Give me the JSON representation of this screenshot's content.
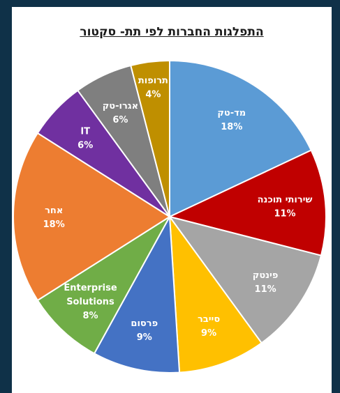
{
  "chart_data": {
    "type": "pie",
    "title": "התפלגות החברות לפי תת- סקטור",
    "start_angle_deg": 0,
    "direction": "clockwise",
    "slices": [
      {
        "label": "מד-טק",
        "value": 18,
        "pct_label": "18%",
        "color": "#5b9bd5"
      },
      {
        "label": "שירותי תוכנה",
        "value": 11,
        "pct_label": "11%",
        "color": "#c00000"
      },
      {
        "label": "פינטק",
        "value": 11,
        "pct_label": "11%",
        "color": "#a5a5a5"
      },
      {
        "label": "סייבר",
        "value": 9,
        "pct_label": "9%",
        "color": "#ffc000"
      },
      {
        "label": "פרסום",
        "value": 9,
        "pct_label": "9%",
        "color": "#4472c4"
      },
      {
        "label": "Enterprise Solutions",
        "value": 8,
        "pct_label": "8%",
        "color": "#70ad47",
        "label_lines": [
          "Enterprise",
          "Solutions"
        ]
      },
      {
        "label": "אחר",
        "value": 18,
        "pct_label": "18%",
        "color": "#ed7d31"
      },
      {
        "label": "IT",
        "value": 6,
        "pct_label": "6%",
        "color": "#7030a0"
      },
      {
        "label": "אגרו-טק",
        "value": 6,
        "pct_label": "6%",
        "color": "#7f7f7f"
      },
      {
        "label": "תרופות",
        "value": 4,
        "pct_label": "4%",
        "color": "#bf8f00"
      }
    ]
  }
}
